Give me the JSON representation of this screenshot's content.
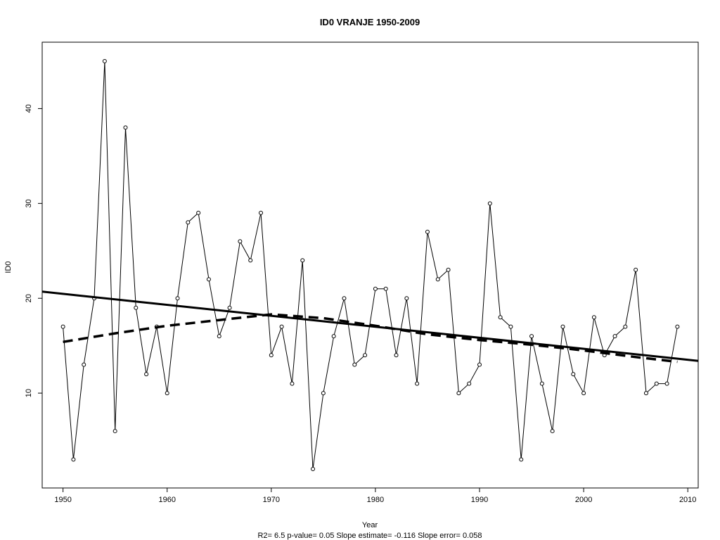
{
  "chart_data": {
    "type": "line",
    "title": "ID0   VRANJE 1950-2009",
    "xlabel": "Year",
    "ylabel": "ID0",
    "footer": "R2= 6.5  p-value= 0.05  Slope estimate= -0.116  Slope error= 0.058",
    "xlim": [
      1948,
      2011
    ],
    "ylim": [
      0,
      47
    ],
    "x_ticks": [
      1950,
      1960,
      1970,
      1980,
      1990,
      2000,
      2010
    ],
    "y_ticks": [
      10,
      20,
      30,
      40
    ],
    "grid": false,
    "series": [
      {
        "kind": "observed",
        "style": "thin line with open circle markers",
        "color": "#000000",
        "x": [
          1950,
          1951,
          1952,
          1953,
          1954,
          1955,
          1956,
          1957,
          1958,
          1959,
          1960,
          1961,
          1962,
          1963,
          1964,
          1965,
          1966,
          1967,
          1968,
          1969,
          1970,
          1971,
          1972,
          1973,
          1974,
          1975,
          1976,
          1977,
          1978,
          1979,
          1980,
          1981,
          1982,
          1983,
          1984,
          1985,
          1986,
          1987,
          1988,
          1989,
          1990,
          1991,
          1992,
          1993,
          1994,
          1995,
          1996,
          1997,
          1998,
          1999,
          2000,
          2001,
          2002,
          2003,
          2004,
          2005,
          2006,
          2007,
          2008,
          2009
        ],
        "values": [
          17,
          3,
          13,
          20,
          45,
          6,
          38,
          19,
          12,
          17,
          10,
          20,
          28,
          29,
          22,
          16,
          19,
          26,
          24,
          29,
          14,
          17,
          11,
          24,
          2,
          10,
          16,
          20,
          13,
          14,
          21,
          21,
          14,
          20,
          11,
          27,
          22,
          23,
          10,
          11,
          13,
          30,
          18,
          17,
          3,
          16,
          11,
          6,
          17,
          12,
          10,
          18,
          14,
          16,
          17,
          23,
          10,
          11,
          11,
          17
        ]
      },
      {
        "kind": "linear-trend",
        "style": "thick solid line",
        "color": "#000000",
        "x": [
          1948,
          2011
        ],
        "values": [
          20.7,
          13.4
        ]
      },
      {
        "kind": "smoothed",
        "style": "thick dashed line",
        "color": "#000000",
        "x": [
          1950,
          1955,
          1960,
          1965,
          1970,
          1975,
          1980,
          1985,
          1990,
          1995,
          2000,
          2005,
          2009
        ],
        "values": [
          15.4,
          16.3,
          17.1,
          17.7,
          18.3,
          17.9,
          17.1,
          16.2,
          15.6,
          15.1,
          14.5,
          13.8,
          13.3
        ]
      }
    ]
  }
}
